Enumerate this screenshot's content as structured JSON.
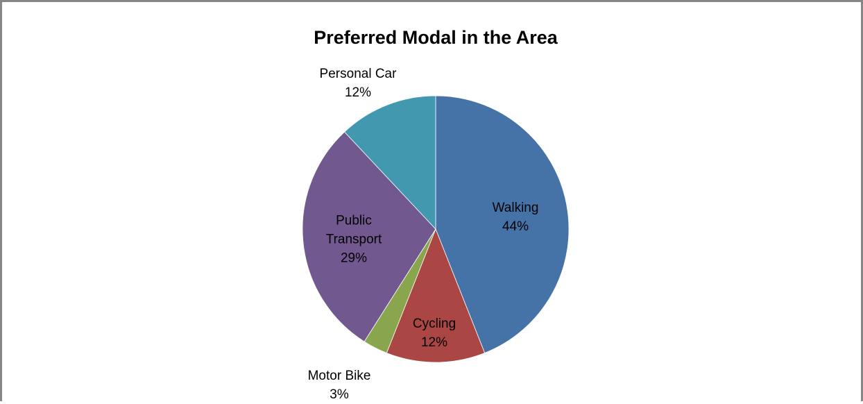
{
  "chart_data": {
    "type": "pie",
    "title": "Preferred Modal in the Area",
    "categories": [
      "Walking",
      "Cycling",
      "Motor Bike",
      "Public Transport",
      "Personal Car"
    ],
    "values": [
      44,
      12,
      3,
      29,
      12
    ],
    "value_labels": [
      "44%",
      "12%",
      "3%",
      "29%",
      "12%"
    ],
    "colors": [
      "#4572a7",
      "#aa4643",
      "#89a54e",
      "#71588f",
      "#4198af"
    ]
  }
}
